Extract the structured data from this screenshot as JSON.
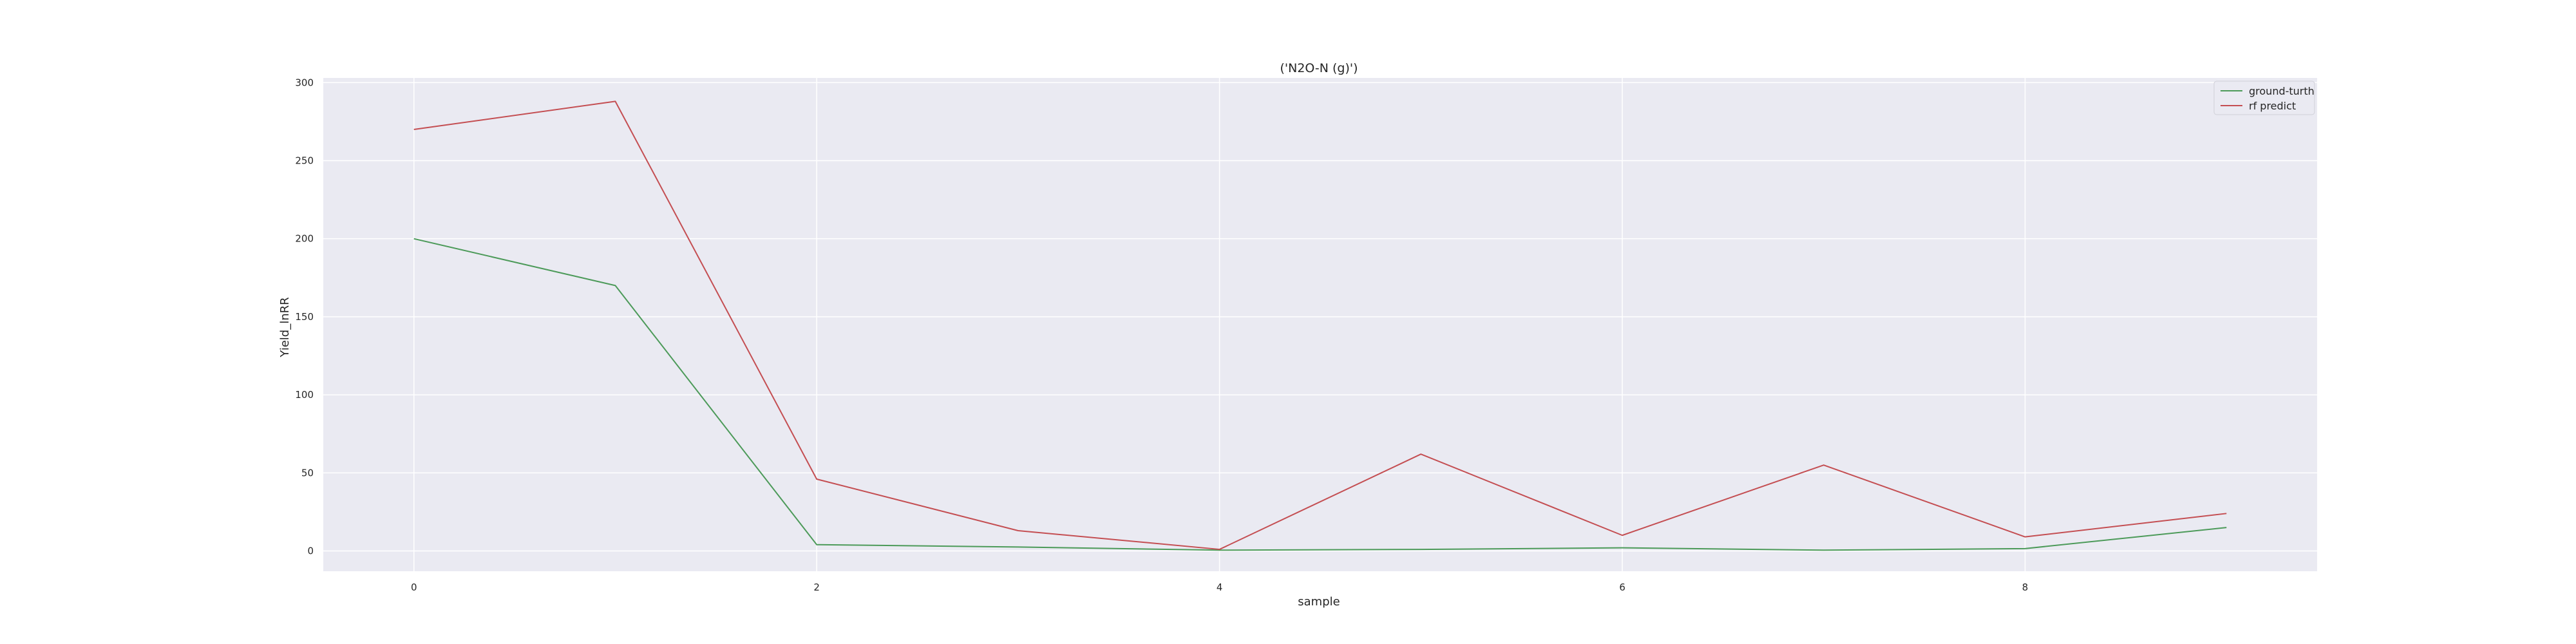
{
  "chart_data": {
    "type": "line",
    "title": "('N2O-N (g)')",
    "xlabel": "sample",
    "ylabel": "Yield_lnRR",
    "x": [
      0,
      1,
      2,
      3,
      4,
      5,
      6,
      7,
      8,
      9
    ],
    "xlim": [
      -0.45,
      9.45
    ],
    "ylim": [
      -13,
      303
    ],
    "xticks": [
      0,
      2,
      4,
      6,
      8
    ],
    "yticks": [
      0,
      50,
      100,
      150,
      200,
      250,
      300
    ],
    "grid": true,
    "legend_position": "top-right",
    "series": [
      {
        "name": "ground-turth",
        "color": "#4c9a59",
        "values": [
          200,
          170,
          4,
          2.5,
          0.5,
          1,
          2,
          0.5,
          1.5,
          15
        ]
      },
      {
        "name": "rf predict",
        "color": "#c44e52",
        "values": [
          270,
          288,
          46,
          13,
          1,
          62,
          10,
          55,
          9,
          24
        ]
      }
    ],
    "colors": {
      "background": "#eaeaf2",
      "grid": "#ffffff"
    }
  }
}
